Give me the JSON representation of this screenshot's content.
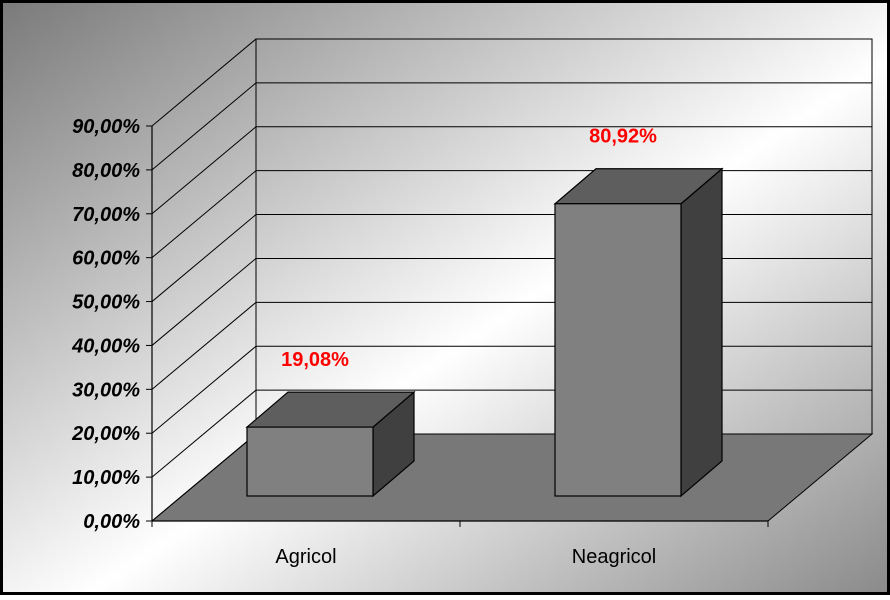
{
  "chart_data": {
    "type": "bar",
    "title": "",
    "xlabel": "",
    "ylabel": "",
    "categories": [
      "Agricol",
      "Neagricol"
    ],
    "values": [
      19.08,
      80.92
    ],
    "value_labels": [
      "19,08%",
      "80,92%"
    ],
    "ylim": [
      0,
      90
    ],
    "y_ticks": [
      0,
      10,
      20,
      30,
      40,
      50,
      60,
      70,
      80,
      90
    ],
    "y_tick_labels": [
      "0,00%",
      "10,00%",
      "20,00%",
      "30,00%",
      "40,00%",
      "50,00%",
      "60,00%",
      "70,00%",
      "80,00%",
      "90,00%"
    ],
    "style": "3d-column",
    "grid": true,
    "legend": "none",
    "colors": {
      "bar_front": "#808080",
      "bar_top": "#5e5e5e",
      "bar_side": "#404040",
      "floor": "#787878",
      "data_label": "#ff0000",
      "background_dark": "#7a7a7a",
      "background_light": "#ffffff"
    }
  }
}
